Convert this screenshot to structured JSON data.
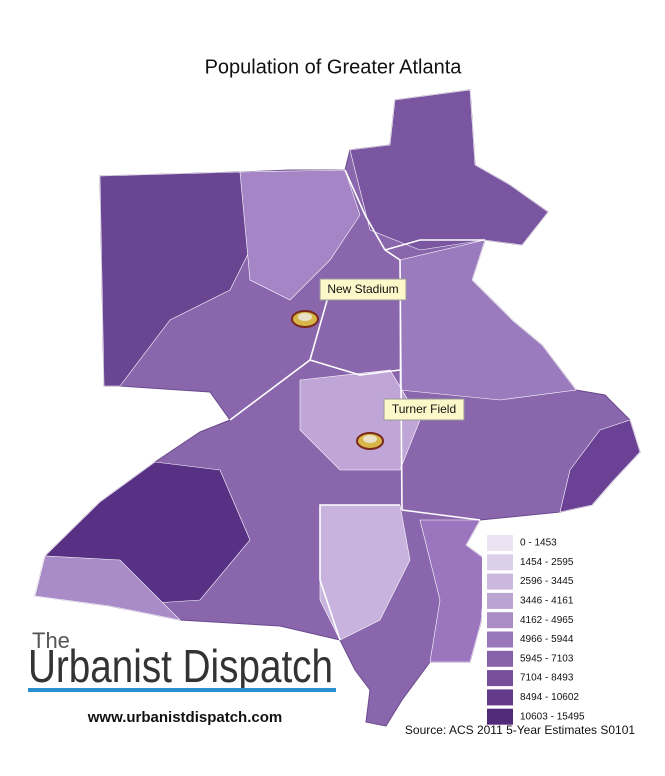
{
  "header": {
    "title": "Population of Greater Atlanta"
  },
  "places": [
    {
      "label": "New Stadium"
    },
    {
      "label": "Turner Field"
    }
  ],
  "legend": [
    {
      "label": "0 - 1453",
      "color": "#ece4f2"
    },
    {
      "label": "1454 - 2595",
      "color": "#dccfe9"
    },
    {
      "label": "2596 - 3445",
      "color": "#cbb8de"
    },
    {
      "label": "3446 - 4161",
      "color": "#bba3d2"
    },
    {
      "label": "4162 - 4965",
      "color": "#aa8dc5"
    },
    {
      "label": "4966 - 5944",
      "color": "#9977b8"
    },
    {
      "label": "5945 - 7103",
      "color": "#8862a9"
    },
    {
      "label": "7104 - 8493",
      "color": "#764e9a"
    },
    {
      "label": "8494 - 10602",
      "color": "#643b8a"
    },
    {
      "label": "10603 - 15495",
      "color": "#522a7a"
    }
  ],
  "logo": {
    "small": "The",
    "name": "Urbanist Dispatch",
    "url": "www.urbanistdispatch.com"
  },
  "source": "Source: ACS 2011 5-Year Estimates S0101"
}
